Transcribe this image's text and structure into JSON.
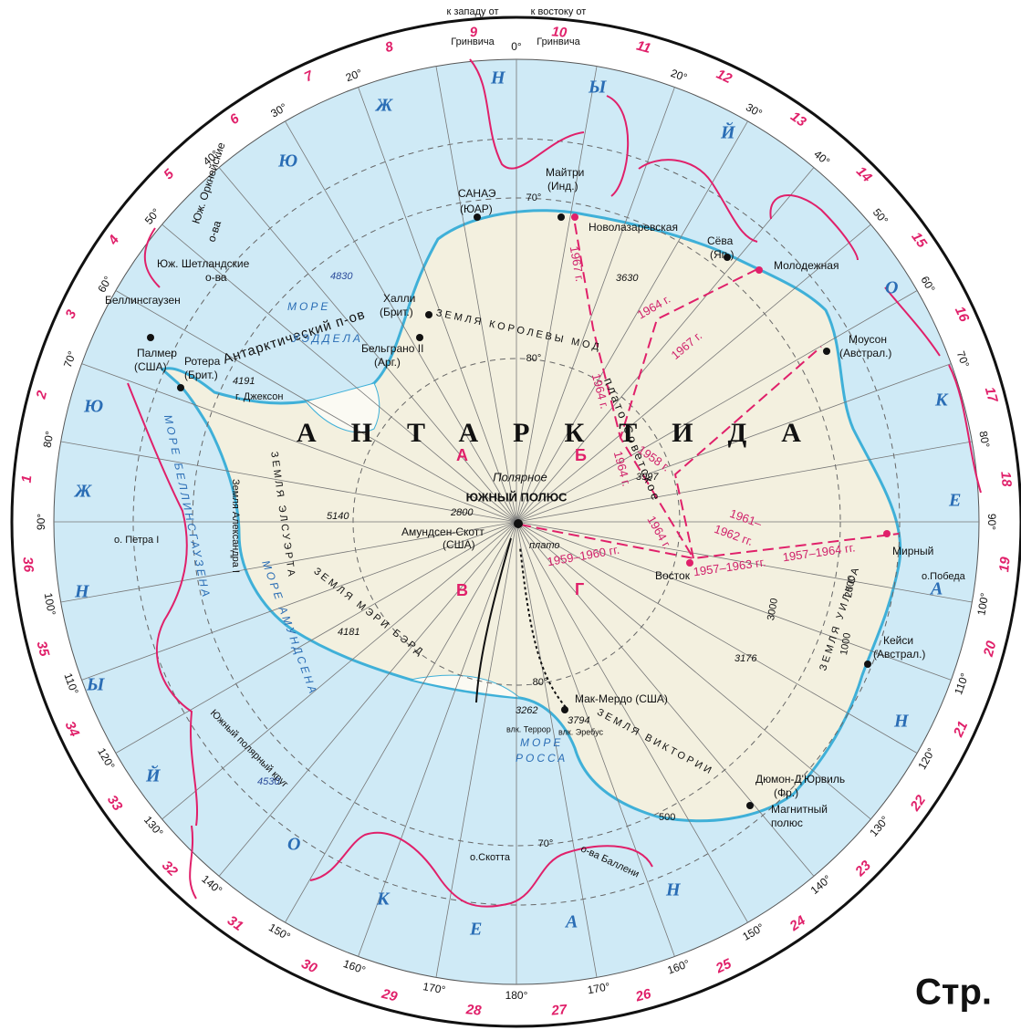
{
  "header": {
    "west": [
      "к западу от",
      "Гринвича"
    ],
    "east": [
      "к востоку от",
      "Гринвича"
    ]
  },
  "meridians": {
    "main": [
      {
        "value": 0,
        "label": "0°"
      },
      {
        "value": 180,
        "label": "180°"
      }
    ],
    "east": [
      {
        "value": 20,
        "label": "20°"
      },
      {
        "value": 30,
        "label": "30°"
      },
      {
        "value": 40,
        "label": "40°"
      },
      {
        "value": 50,
        "label": "50°"
      },
      {
        "value": 60,
        "label": "60°"
      },
      {
        "value": 70,
        "label": "70°"
      },
      {
        "value": 80,
        "label": "80°"
      },
      {
        "value": 90,
        "label": "90°"
      },
      {
        "value": 100,
        "label": "100°"
      },
      {
        "value": 110,
        "label": "110°"
      },
      {
        "value": 120,
        "label": "120°"
      },
      {
        "value": 130,
        "label": "130°"
      },
      {
        "value": 140,
        "label": "140°"
      },
      {
        "value": 150,
        "label": "150°"
      },
      {
        "value": 160,
        "label": "160°"
      },
      {
        "value": 170,
        "label": "170°"
      }
    ],
    "west": [
      {
        "value": 20,
        "label": "20°"
      },
      {
        "value": 30,
        "label": "30°"
      },
      {
        "value": 40,
        "label": "40°"
      },
      {
        "value": 50,
        "label": "50°"
      },
      {
        "value": 60,
        "label": "60°"
      },
      {
        "value": 70,
        "label": "70°"
      },
      {
        "value": 80,
        "label": "80°"
      },
      {
        "value": 90,
        "label": "90°"
      },
      {
        "value": 100,
        "label": "100°"
      },
      {
        "value": 110,
        "label": "110°"
      },
      {
        "value": 120,
        "label": "120°"
      },
      {
        "value": 130,
        "label": "130°"
      },
      {
        "value": 140,
        "label": "140°"
      },
      {
        "value": 150,
        "label": "150°"
      },
      {
        "value": 160,
        "label": "160°"
      },
      {
        "value": 170,
        "label": "170°"
      }
    ]
  },
  "zones": [
    1,
    2,
    3,
    4,
    5,
    6,
    7,
    8,
    9,
    10,
    11,
    12,
    13,
    14,
    15,
    16,
    17,
    18,
    19,
    20,
    21,
    22,
    23,
    24,
    25,
    26,
    27,
    28,
    29,
    30,
    31,
    32,
    33,
    34,
    35,
    36
  ],
  "ocean_letters": [
    "Ю",
    "Ж",
    "Н",
    "Ы",
    "Й",
    "О",
    "К",
    "Е",
    "А",
    "Н",
    "Ю",
    "Ж",
    "Н",
    "Ы",
    "Й",
    "О",
    "К",
    "Е",
    "А",
    "Н"
  ],
  "lat_labels": [
    "70°",
    "80°",
    "80°",
    "70°"
  ],
  "places": [
    "Юж. Оркнейские",
    "о-ва",
    "Юж. Шетландские",
    "о-ва",
    "Беллинсгаузен",
    "Палмер",
    "(США)",
    "Ротера",
    "(Брит.)",
    "4191",
    "г. Джексон",
    "Антарктический п-ов",
    "4830",
    "МОРЕ",
    "УЭДДЕЛА",
    "Халли",
    "(Брит.)",
    "Бельграно II",
    "(Арг.)",
    "САНАЭ",
    "(ЮАР)",
    "Майтри",
    "(Инд.)",
    "Новолазаревская",
    "Сёва",
    "(Яп.)",
    "Молодежная",
    "Моусон",
    "(Австрал.)",
    "3630",
    "ЗЕМЛЯ КОРОЛЕВЫ МОД",
    "АНТАРКТИДА",
    "А",
    "Б",
    "В",
    "Г",
    "Полярное",
    "ЮЖНЫЙ ПОЛЮС",
    "2800",
    "Амундсен-Скотт",
    "(США)",
    "плато",
    "3997",
    "плато Советское",
    "Восток",
    "Мирный",
    "о.Победа",
    "Кейси",
    "(Австрал.)",
    "ЗЕМЛЯ УИЛКСА",
    "3176",
    "Мак-Мердо (США)",
    "3262",
    "3794",
    "влк. Террор",
    "влк. Эребус",
    "МОРЕ",
    "РОССА",
    "ЗЕМЛЯ ВИКТОРИИ",
    "Дюмон-Д'Юрвиль",
    "(Фр.)",
    "Магнитный",
    "полюс",
    "500",
    "1000",
    "2000",
    "3000",
    "о.Скотта",
    "о-ва Баллени",
    "Южный полярный круг",
    "4530",
    "4181",
    "ЗЕМЛЯ МЭРИ БЭРД",
    "МОРЕ АМУНДСЕНА",
    "5140",
    "ЗЕМЛЯ ЭЛСУЭРТА",
    "Земля Александра I",
    "МОРЕ БЕЛЛИНСГАУЗЕНА",
    "о. Петра I"
  ],
  "routes": [
    "1967 г.",
    "1964 г.",
    "1967 г.",
    "1964 г.",
    "1964 г.",
    "1958 г.",
    "1961–",
    "1962 гг.",
    "1964 г.",
    "1959–1960 гг.",
    "1957–1963 гг.",
    "1957–1964 гг."
  ],
  "footer": "Стр."
}
